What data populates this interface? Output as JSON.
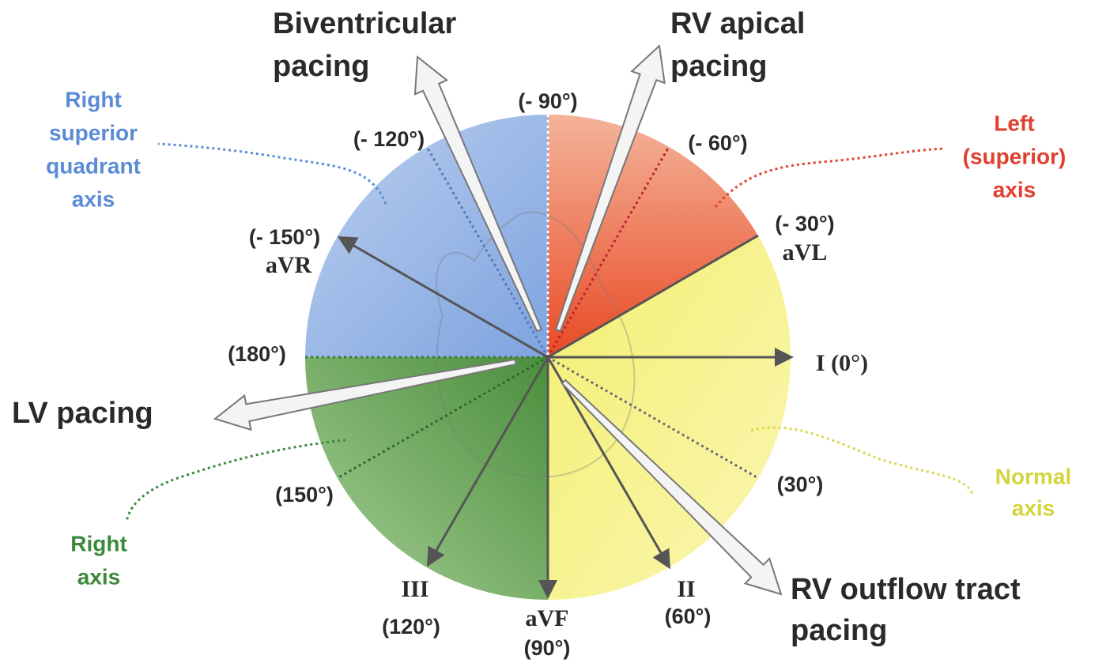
{
  "pacing": [
    {
      "lines": [
        "Biventricular",
        "pacing"
      ]
    },
    {
      "lines": [
        "RV apical",
        "pacing"
      ]
    },
    {
      "lines": [
        "LV pacing"
      ]
    },
    {
      "lines": [
        "RV outflow tract",
        "pacing"
      ]
    }
  ],
  "axis_regions": [
    {
      "lines": [
        "Right",
        "superior",
        "quadrant",
        "axis"
      ]
    },
    {
      "lines": [
        "Left",
        "(superior)",
        "axis"
      ]
    },
    {
      "lines": [
        "Normal",
        "axis"
      ]
    },
    {
      "lines": [
        "Right",
        "axis"
      ]
    }
  ],
  "angles": [
    "(- 90°)",
    "(- 120°)",
    "(- 60°)",
    "(- 150°)",
    "(- 30°)",
    "(180°)",
    "(150°)",
    "(30°)",
    "(120°)",
    "(90°)",
    "(60°)",
    "I (0°)"
  ],
  "leads": [
    "aVR",
    "aVL",
    "III",
    "aVF",
    "II"
  ]
}
